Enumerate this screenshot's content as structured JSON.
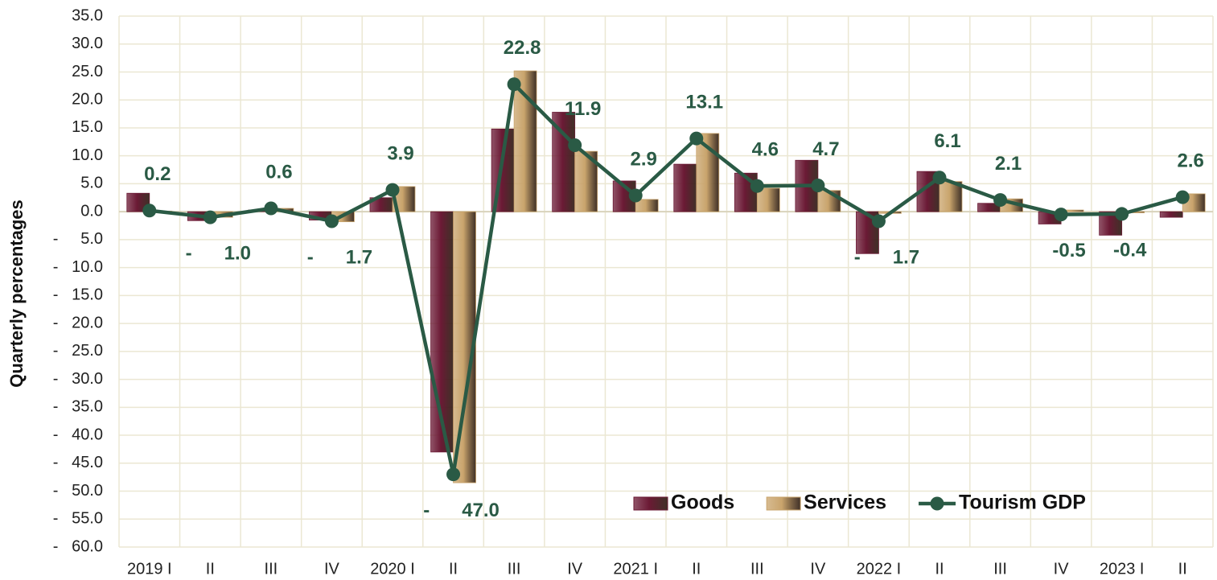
{
  "chart_data": {
    "type": "bar_line",
    "y_axis_label": "Quarterly percentages",
    "categories": [
      "2019 I",
      "II",
      "III",
      "IV",
      "2020 I",
      "II",
      "III",
      "IV",
      "2021 I",
      "II",
      "III",
      "IV",
      "2022 I",
      "II",
      "III",
      "IV",
      "2023 I",
      "II"
    ],
    "series": [
      {
        "name": "Goods",
        "type": "bar",
        "color": "#6b1a35",
        "values": [
          3.3,
          -1.6,
          0.3,
          -1.5,
          2.5,
          -43.0,
          14.8,
          17.8,
          5.5,
          8.5,
          6.9,
          9.2,
          -7.5,
          7.2,
          1.5,
          -2.2,
          -4.2,
          -1.0
        ]
      },
      {
        "name": "Services",
        "type": "bar",
        "color": "#c9a46c",
        "values": [
          0.1,
          -1.0,
          0.6,
          -1.8,
          4.5,
          -48.5,
          25.2,
          10.8,
          2.2,
          14.0,
          4.2,
          3.8,
          -0.3,
          5.4,
          2.3,
          0.3,
          -0.2,
          3.2
        ]
      },
      {
        "name": "Tourism GDP",
        "type": "line",
        "color": "#2a5a45",
        "values": [
          0.2,
          -1.0,
          0.6,
          -1.7,
          3.9,
          -47.0,
          22.8,
          11.9,
          2.9,
          13.1,
          4.6,
          4.7,
          -1.7,
          6.1,
          2.1,
          -0.5,
          -0.4,
          2.6
        ],
        "value_labels": [
          "0.2",
          "-      1.0",
          "0.6",
          "-      1.7",
          "3.9",
          "-      47.0",
          "22.8",
          "11.9",
          "2.9",
          "13.1",
          "4.6",
          "4.7",
          "-      1.7",
          "6.1",
          "2.1",
          "-0.5",
          "-0.4",
          "2.6"
        ]
      }
    ],
    "ylim": [
      -60,
      35
    ],
    "yticks": [
      {
        "value": 35,
        "label": "35.0"
      },
      {
        "value": 30,
        "label": "30.0"
      },
      {
        "value": 25,
        "label": "25.0"
      },
      {
        "value": 20,
        "label": "20.0"
      },
      {
        "value": 15,
        "label": "15.0"
      },
      {
        "value": 10,
        "label": "10.0"
      },
      {
        "value": 5,
        "label": "5.0"
      },
      {
        "value": 0,
        "label": "0.0"
      },
      {
        "value": -5,
        "label": "-     5.0"
      },
      {
        "value": -10,
        "label": "-   10.0"
      },
      {
        "value": -15,
        "label": "-   15.0"
      },
      {
        "value": -20,
        "label": "-   20.0"
      },
      {
        "value": -25,
        "label": "-   25.0"
      },
      {
        "value": -30,
        "label": "-   30.0"
      },
      {
        "value": -35,
        "label": "-   35.0"
      },
      {
        "value": -40,
        "label": "-   40.0"
      },
      {
        "value": -45,
        "label": "-   45.0"
      },
      {
        "value": -50,
        "label": "-   50.0"
      },
      {
        "value": -55,
        "label": "-   55.0"
      },
      {
        "value": -60,
        "label": "-   60.0"
      }
    ],
    "grid": true,
    "legend_position": "lower right"
  }
}
